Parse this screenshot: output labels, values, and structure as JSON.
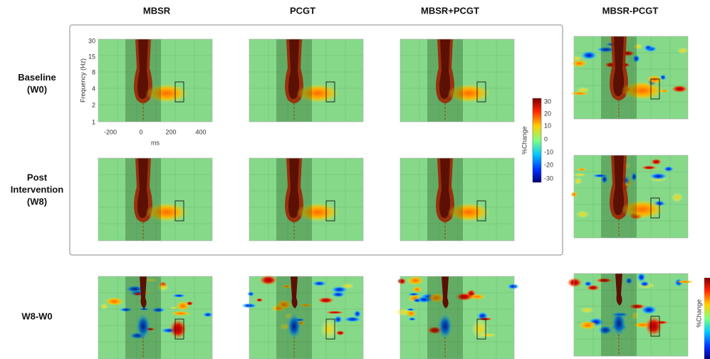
{
  "figure": {
    "column_titles": [
      "MBSR",
      "PCGT",
      "MBSR+PCGT",
      "MBSR-PCGT"
    ],
    "row_labels": [
      [
        "Baseline",
        "(W0)"
      ],
      [
        "Post",
        "Intervention",
        "(W8)"
      ],
      [
        "W8-W0"
      ]
    ],
    "axes": {
      "y_label": "Frequency (Hz)",
      "y_ticks": [
        30,
        15,
        8,
        4,
        2,
        1
      ],
      "x_label": "ms",
      "x_ticks": [
        -200,
        0,
        200,
        400
      ]
    },
    "colorbar": {
      "label": "%Change",
      "ticks": [
        30,
        20,
        10,
        0,
        -10,
        -20,
        -30
      ]
    },
    "colorbar2": {
      "label": "%Change"
    }
  }
}
